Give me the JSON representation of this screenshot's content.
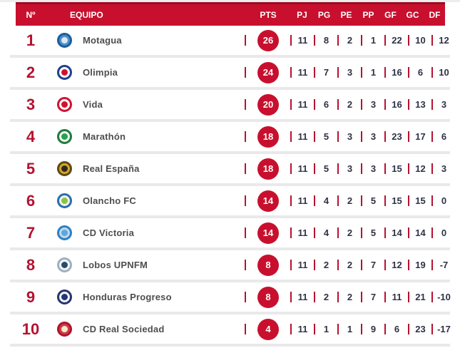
{
  "header": {
    "num": "Nº",
    "team": "EQUIPO",
    "pts": "PTS",
    "stats": [
      "PJ",
      "PG",
      "PE",
      "PP",
      "GF",
      "GC",
      "DF"
    ]
  },
  "rows": [
    {
      "pos": "1",
      "team": "Motagua",
      "pts": "26",
      "stats": [
        "11",
        "8",
        "2",
        "1",
        "22",
        "10",
        "12"
      ],
      "logo": [
        "#1a5c9e",
        "#4e8fc4",
        "#d8e8f5"
      ]
    },
    {
      "pos": "2",
      "team": "Olimpia",
      "pts": "24",
      "stats": [
        "11",
        "7",
        "3",
        "1",
        "16",
        "6",
        "10"
      ],
      "logo": [
        "#1d3f8f",
        "#ffffff",
        "#cf1330"
      ]
    },
    {
      "pos": "3",
      "team": "Vida",
      "pts": "20",
      "stats": [
        "11",
        "6",
        "2",
        "3",
        "16",
        "13",
        "3"
      ],
      "logo": [
        "#cf1330",
        "#ffffff",
        "#cf1330"
      ]
    },
    {
      "pos": "4",
      "team": "Marathón",
      "pts": "18",
      "stats": [
        "11",
        "5",
        "3",
        "3",
        "23",
        "17",
        "6"
      ],
      "logo": [
        "#1f7a3d",
        "#eef7ef",
        "#2e9e52"
      ]
    },
    {
      "pos": "5",
      "team": "Real España",
      "pts": "18",
      "stats": [
        "11",
        "5",
        "3",
        "3",
        "15",
        "12",
        "3"
      ],
      "logo": [
        "#5c4a12",
        "#d8a62a",
        "#2e2a1a"
      ]
    },
    {
      "pos": "6",
      "team": "Olancho FC",
      "pts": "14",
      "stats": [
        "11",
        "4",
        "2",
        "5",
        "15",
        "15",
        "0"
      ],
      "logo": [
        "#2b6cb0",
        "#eef5e6",
        "#8bc34a"
      ]
    },
    {
      "pos": "7",
      "team": "CD Victoria",
      "pts": "14",
      "stats": [
        "11",
        "4",
        "2",
        "5",
        "14",
        "14",
        "0"
      ],
      "logo": [
        "#2f7fc1",
        "#bcd9ef",
        "#5ea7d8"
      ]
    },
    {
      "pos": "8",
      "team": "Lobos UPNFM",
      "pts": "8",
      "stats": [
        "11",
        "2",
        "2",
        "7",
        "12",
        "19",
        "-7"
      ],
      "logo": [
        "#9fb0bd",
        "#f2f4f6",
        "#274b6d"
      ]
    },
    {
      "pos": "9",
      "team": "Honduras Progreso",
      "pts": "8",
      "stats": [
        "11",
        "2",
        "2",
        "7",
        "11",
        "21",
        "-10"
      ],
      "logo": [
        "#26356e",
        "#f0f2f7",
        "#26356e"
      ]
    },
    {
      "pos": "10",
      "team": "CD Real Sociedad",
      "pts": "4",
      "stats": [
        "11",
        "1",
        "1",
        "9",
        "6",
        "23",
        "-17"
      ],
      "logo": [
        "#b01329",
        "#cf3a4e",
        "#f5e9c8"
      ]
    }
  ],
  "colors": {
    "header_bg": "#c8102e",
    "header_top_line": "#9b0c22",
    "header_text": "#ffffff",
    "position_text": "#b5122f",
    "badge_bg": "#c8102e",
    "badge_text": "#ffffff",
    "separator_bar": "#b5122f",
    "team_text": "#4e4e4e",
    "stat_text": "#2e3345",
    "row_divider": "#e9e9e9",
    "row_bg": "#ffffff"
  }
}
